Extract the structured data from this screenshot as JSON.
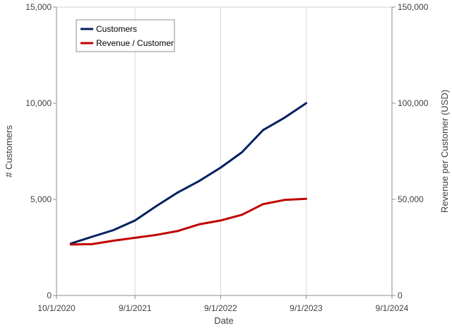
{
  "chart_data": {
    "type": "line",
    "title": "",
    "xlabel": "Date",
    "ylabel": "# Customers",
    "y2label": "Revenue per Customer (USD)",
    "x_ticks": [
      "10/1/2020",
      "9/1/2021",
      "9/1/2022",
      "9/1/2023",
      "9/1/2024"
    ],
    "x_range": [
      "2020-10-01",
      "2024-09-01"
    ],
    "ylim": [
      0,
      15000
    ],
    "y2lim": [
      0,
      150000
    ],
    "y_ticks": [
      "0",
      "5,000",
      "10,000",
      "15,000"
    ],
    "y2_ticks": [
      "0",
      "50,000",
      "100,000",
      "150,000"
    ],
    "grid": "vertical",
    "legend": "top-left",
    "x": [
      "2020-12-01",
      "2021-03-01",
      "2021-06-01",
      "2021-09-01",
      "2021-12-01",
      "2022-03-01",
      "2022-06-01",
      "2022-09-01",
      "2022-12-01",
      "2023-03-01",
      "2023-06-01",
      "2023-09-01"
    ],
    "series": [
      {
        "name": "Customers",
        "axis": "left",
        "color": "#002060",
        "values": [
          2700,
          3050,
          3400,
          3900,
          4650,
          5350,
          5950,
          6650,
          7450,
          8600,
          9250,
          10000
        ]
      },
      {
        "name": "Revenue / Customer",
        "axis": "right",
        "color": "#C00000",
        "values": [
          26500,
          26700,
          28500,
          30000,
          31500,
          33500,
          37000,
          39000,
          42000,
          47500,
          49700,
          50300
        ]
      }
    ]
  }
}
